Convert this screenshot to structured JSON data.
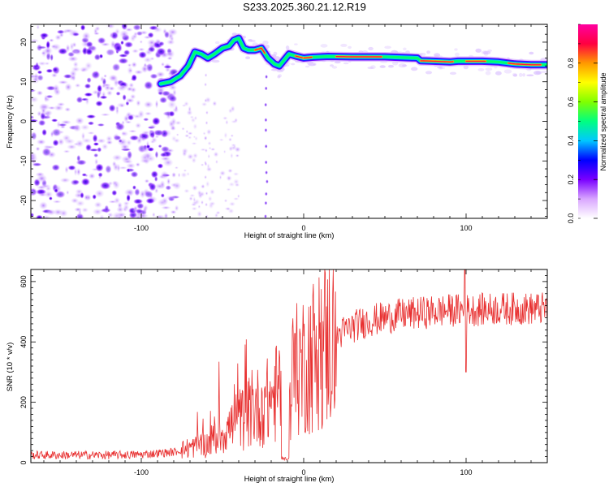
{
  "title": "S233.2025.360.21.12.R19",
  "chart_data": [
    {
      "type": "heatmap",
      "xlabel": "Height of straight line (km)",
      "ylabel": "Frequency (Hz)",
      "xlim": [
        -168,
        150
      ],
      "ylim": [
        -24.5,
        24.5
      ],
      "xticks": [
        "-100",
        "0",
        "100"
      ],
      "yticks": [
        "-20",
        "-10",
        "0",
        "10",
        "20"
      ],
      "colorbar": {
        "label": "Normalized spectral amplitude",
        "range": [
          0,
          1
        ],
        "ticks": [
          "0.0",
          "0.2",
          "0.4",
          "0.6",
          "0.8"
        ],
        "stops": [
          "#ffffff",
          "#d9a6ff",
          "#7a00ff",
          "#0000ff",
          "#00c8ff",
          "#00ff80",
          "#80ff00",
          "#ffff00",
          "#ff9900",
          "#ff0040",
          "#ff00a0"
        ]
      },
      "ridge": {
        "x": [
          -88,
          -82,
          -76,
          -71,
          -67,
          -63,
          -59,
          -55,
          -50,
          -46,
          -43,
          -40,
          -37,
          -34,
          -30,
          -26,
          -22,
          -18,
          -15,
          -12,
          -9,
          -5,
          0,
          5,
          15,
          30,
          50,
          70,
          72,
          80,
          90,
          95,
          100,
          110,
          120,
          130,
          140,
          150
        ],
        "y": [
          9.5,
          10,
          11.5,
          14,
          17.5,
          17,
          16,
          17,
          18.5,
          19,
          20.5,
          21,
          18.5,
          18,
          18,
          18.5,
          16,
          14.5,
          14,
          15.5,
          17,
          16.5,
          16,
          16.2,
          16.4,
          16.3,
          16.3,
          16.0,
          15.3,
          15.2,
          15.0,
          15.2,
          15.2,
          15.2,
          15.0,
          14.5,
          14.3,
          14.3
        ]
      }
    },
    {
      "type": "line",
      "xlabel": "Height of straight line (km)",
      "ylabel": "SNR (10 * v/v)",
      "xlim": [
        -168,
        150
      ],
      "ylim": [
        0,
        640
      ],
      "xticks": [
        "-100",
        "0",
        "100"
      ],
      "yticks": [
        "0",
        "200",
        "400",
        "600"
      ],
      "color": "#e83030",
      "envelope": {
        "x": [
          -168,
          -120,
          -100,
          -80,
          -70,
          -60,
          -55,
          -50,
          -45,
          -40,
          -35,
          -30,
          -25,
          -20,
          -15,
          -10,
          -5,
          0,
          10,
          20,
          30,
          40,
          50,
          60,
          70,
          80,
          90,
          100,
          120,
          150
        ],
        "y": [
          25,
          25,
          27,
          35,
          50,
          60,
          80,
          100,
          120,
          140,
          160,
          180,
          190,
          210,
          240,
          270,
          300,
          330,
          380,
          420,
          450,
          470,
          480,
          490,
          495,
          500,
          505,
          505,
          510,
          510
        ]
      },
      "features": [
        {
          "x": 99.5,
          "y": 640
        },
        {
          "x": 99.8,
          "y": 300
        },
        {
          "x": -12,
          "y": 8
        }
      ]
    }
  ]
}
